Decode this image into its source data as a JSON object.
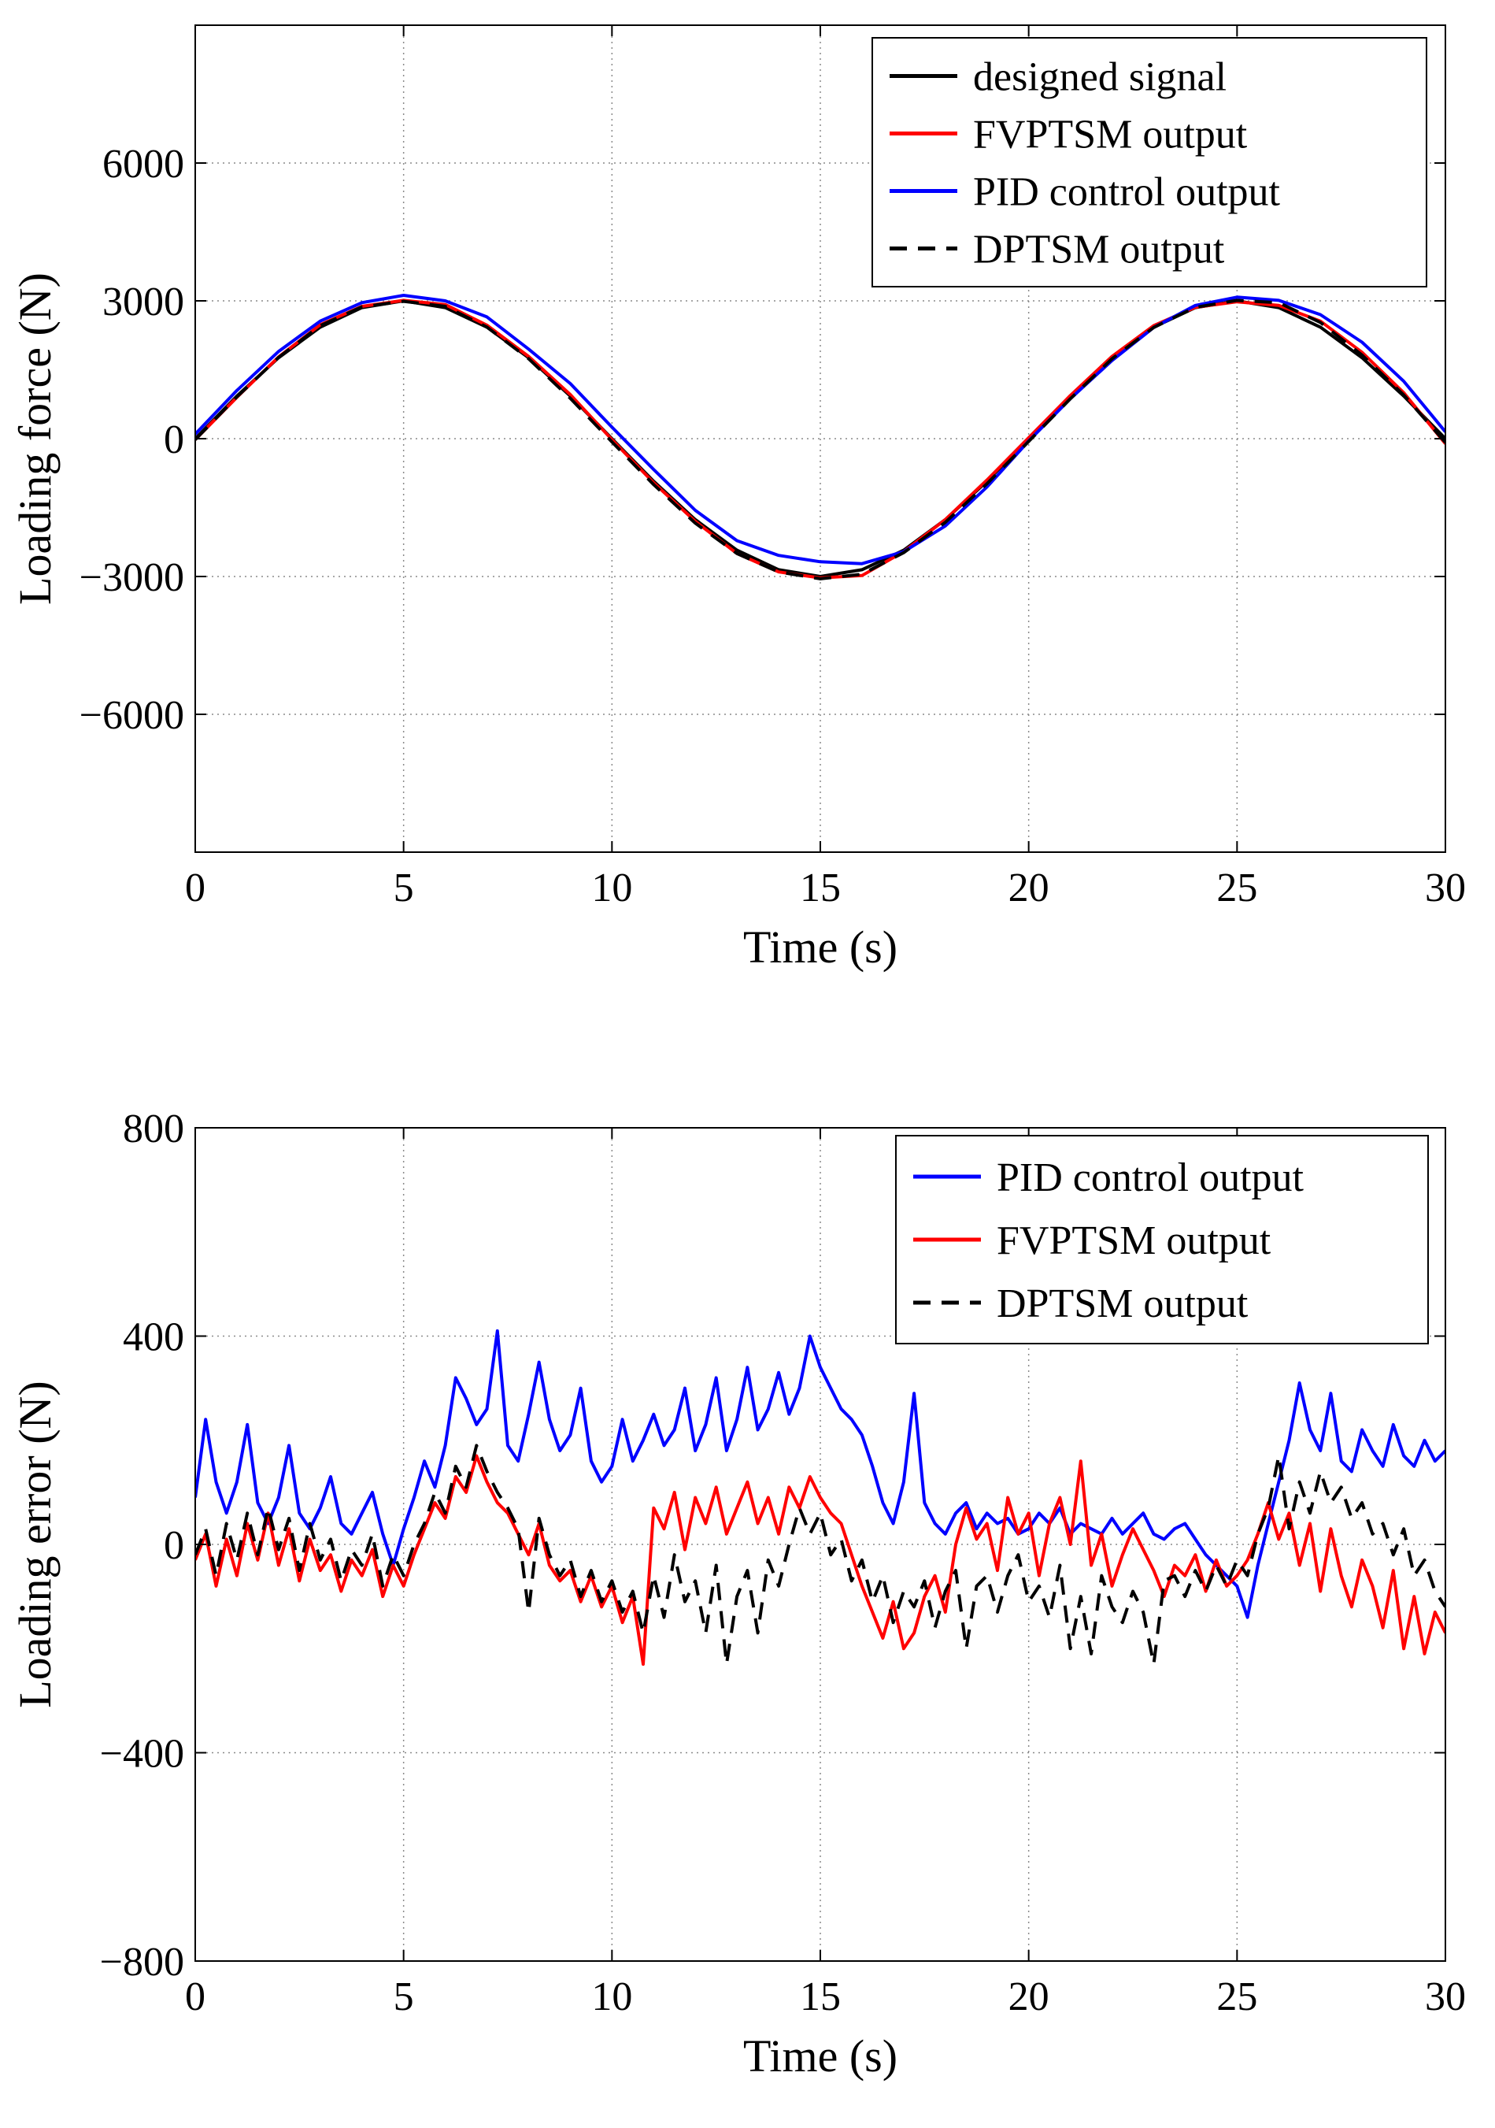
{
  "chart_data": [
    {
      "type": "line",
      "title": "",
      "xlabel": "Time (s)",
      "ylabel": "Loading force (N)",
      "xlim": [
        0,
        30
      ],
      "ylim": [
        -9000,
        9000
      ],
      "xticks": [
        0,
        5,
        10,
        15,
        20,
        25,
        30
      ],
      "xtick_labels": [
        "0",
        "5",
        "10",
        "15",
        "20",
        "25",
        "30"
      ],
      "yticks": [
        -6000,
        -3000,
        0,
        3000,
        6000
      ],
      "ytick_labels": [
        "−6000",
        "−3000",
        "0",
        "3000",
        "6000"
      ],
      "grid": true,
      "legend_position": "top-right",
      "series": [
        {
          "name": "designed signal",
          "color": "#000000",
          "style": "solid",
          "x": [
            0,
            1,
            2,
            3,
            4,
            5,
            6,
            7,
            8,
            9,
            10,
            11,
            12,
            13,
            14,
            15,
            16,
            17,
            18,
            19,
            20,
            21,
            22,
            23,
            24,
            25,
            26,
            27,
            28,
            29,
            30
          ],
          "values": [
            0,
            927,
            1763,
            2427,
            2853,
            3000,
            2853,
            2427,
            1763,
            927,
            0,
            -927,
            -1763,
            -2427,
            -2853,
            -3000,
            -2853,
            -2427,
            -1763,
            -927,
            0,
            927,
            1763,
            2427,
            2853,
            3000,
            2853,
            2427,
            1763,
            927,
            0
          ]
        },
        {
          "name": "FVPTSM output",
          "color": "#ff0000",
          "style": "solid",
          "x": [
            0,
            1,
            2,
            3,
            4,
            5,
            6,
            7,
            8,
            9,
            10,
            11,
            12,
            13,
            14,
            15,
            16,
            17,
            18,
            19,
            20,
            21,
            22,
            23,
            24,
            25,
            26,
            27,
            28,
            29,
            30
          ],
          "values": [
            -20,
            900,
            1780,
            2480,
            2880,
            3010,
            2920,
            2470,
            1790,
            960,
            -20,
            -960,
            -1800,
            -2500,
            -2900,
            -3030,
            -2980,
            -2460,
            -1760,
            -900,
            20,
            940,
            1790,
            2460,
            2860,
            2980,
            2900,
            2560,
            1880,
            1000,
            -110
          ]
        },
        {
          "name": "PID control output",
          "color": "#0000ff",
          "style": "solid",
          "x": [
            0,
            1,
            2,
            3,
            4,
            5,
            6,
            7,
            8,
            9,
            10,
            11,
            12,
            13,
            14,
            15,
            16,
            17,
            18,
            19,
            20,
            21,
            22,
            23,
            24,
            25,
            26,
            27,
            28,
            29,
            30
          ],
          "values": [
            100,
            1050,
            1900,
            2560,
            2960,
            3120,
            3000,
            2650,
            1950,
            1200,
            250,
            -670,
            -1560,
            -2220,
            -2540,
            -2680,
            -2720,
            -2460,
            -1900,
            -1050,
            -50,
            870,
            1700,
            2420,
            2900,
            3080,
            3010,
            2700,
            2100,
            1250,
            150
          ]
        },
        {
          "name": "DPTSM output",
          "color": "#000000",
          "style": "dashed",
          "x": [
            0,
            1,
            2,
            3,
            4,
            5,
            6,
            7,
            8,
            9,
            10,
            11,
            12,
            13,
            14,
            15,
            16,
            17,
            18,
            19,
            20,
            21,
            22,
            23,
            24,
            25,
            26,
            27,
            28,
            29,
            30
          ],
          "values": [
            -20,
            910,
            1770,
            2460,
            2870,
            2990,
            2880,
            2430,
            1740,
            880,
            -70,
            -1000,
            -1840,
            -2500,
            -2900,
            -3050,
            -2950,
            -2480,
            -1820,
            -980,
            -60,
            870,
            1740,
            2420,
            2860,
            3010,
            2960,
            2530,
            1820,
            950,
            -80
          ]
        }
      ]
    },
    {
      "type": "line",
      "title": "",
      "xlabel": "Time (s)",
      "ylabel": "Loading error (N)",
      "xlim": [
        0,
        30
      ],
      "ylim": [
        -800,
        800
      ],
      "xticks": [
        0,
        5,
        10,
        15,
        20,
        25,
        30
      ],
      "xtick_labels": [
        "0",
        "5",
        "10",
        "15",
        "20",
        "25",
        "30"
      ],
      "yticks": [
        -800,
        -400,
        0,
        400,
        800
      ],
      "ytick_labels": [
        "−800",
        "−400",
        "0",
        "400",
        "800"
      ],
      "grid": true,
      "legend_position": "top-right",
      "series": [
        {
          "name": "PID control output",
          "color": "#0000ff",
          "style": "solid",
          "x": [
            0,
            0.25,
            0.5,
            0.75,
            1,
            1.25,
            1.5,
            1.75,
            2,
            2.25,
            2.5,
            2.75,
            3,
            3.25,
            3.5,
            3.75,
            4,
            4.25,
            4.5,
            4.75,
            5,
            5.25,
            5.5,
            5.75,
            6,
            6.25,
            6.5,
            6.75,
            7,
            7.25,
            7.5,
            7.75,
            8,
            8.25,
            8.5,
            8.75,
            9,
            9.25,
            9.5,
            9.75,
            10,
            10.25,
            10.5,
            10.75,
            11,
            11.25,
            11.5,
            11.75,
            12,
            12.25,
            12.5,
            12.75,
            13,
            13.25,
            13.5,
            13.75,
            14,
            14.25,
            14.5,
            14.75,
            15,
            15.25,
            15.5,
            15.75,
            16,
            16.25,
            16.5,
            16.75,
            17,
            17.25,
            17.5,
            17.75,
            18,
            18.25,
            18.5,
            18.75,
            19,
            19.25,
            19.5,
            19.75,
            20,
            20.25,
            20.5,
            20.75,
            21,
            21.25,
            21.5,
            21.75,
            22,
            22.25,
            22.5,
            22.75,
            23,
            23.25,
            23.5,
            23.75,
            24,
            24.25,
            24.5,
            24.75,
            25,
            25.25,
            25.5,
            25.75,
            26,
            26.25,
            26.5,
            26.75,
            27,
            27.25,
            27.5,
            27.75,
            28,
            28.25,
            28.5,
            28.75,
            29,
            29.25,
            29.5,
            29.75,
            30
          ],
          "values": [
            90,
            240,
            120,
            60,
            120,
            230,
            80,
            40,
            90,
            190,
            60,
            30,
            70,
            130,
            40,
            20,
            60,
            100,
            20,
            -40,
            30,
            90,
            160,
            110,
            190,
            320,
            280,
            230,
            260,
            410,
            190,
            160,
            250,
            350,
            240,
            180,
            210,
            300,
            160,
            120,
            150,
            240,
            160,
            200,
            250,
            190,
            220,
            300,
            180,
            230,
            320,
            180,
            240,
            340,
            220,
            260,
            330,
            250,
            300,
            400,
            340,
            300,
            260,
            240,
            210,
            150,
            80,
            40,
            120,
            290,
            80,
            40,
            20,
            60,
            80,
            30,
            60,
            40,
            50,
            20,
            30,
            60,
            40,
            70,
            20,
            40,
            30,
            20,
            50,
            20,
            40,
            60,
            20,
            10,
            30,
            40,
            10,
            -20,
            -40,
            -60,
            -80,
            -140,
            -40,
            40,
            120,
            200,
            310,
            220,
            180,
            290,
            160,
            140,
            220,
            180,
            150,
            230,
            170,
            150,
            200,
            160,
            180
          ]
        },
        {
          "name": "FVPTSM output",
          "color": "#ff0000",
          "style": "solid",
          "x": [
            0,
            0.25,
            0.5,
            0.75,
            1,
            1.25,
            1.5,
            1.75,
            2,
            2.25,
            2.5,
            2.75,
            3,
            3.25,
            3.5,
            3.75,
            4,
            4.25,
            4.5,
            4.75,
            5,
            5.25,
            5.5,
            5.75,
            6,
            6.25,
            6.5,
            6.75,
            7,
            7.25,
            7.5,
            7.75,
            8,
            8.25,
            8.5,
            8.75,
            9,
            9.25,
            9.5,
            9.75,
            10,
            10.25,
            10.5,
            10.75,
            11,
            11.25,
            11.5,
            11.75,
            12,
            12.25,
            12.5,
            12.75,
            13,
            13.25,
            13.5,
            13.75,
            14,
            14.25,
            14.5,
            14.75,
            15,
            15.25,
            15.5,
            15.75,
            16,
            16.25,
            16.5,
            16.75,
            17,
            17.25,
            17.5,
            17.75,
            18,
            18.25,
            18.5,
            18.75,
            19,
            19.25,
            19.5,
            19.75,
            20,
            20.25,
            20.5,
            20.75,
            21,
            21.25,
            21.5,
            21.75,
            22,
            22.25,
            22.5,
            22.75,
            23,
            23.25,
            23.5,
            23.75,
            24,
            24.25,
            24.5,
            24.75,
            25,
            25.25,
            25.5,
            25.75,
            26,
            26.25,
            26.5,
            26.75,
            27,
            27.25,
            27.5,
            27.75,
            28,
            28.25,
            28.5,
            28.75,
            29,
            29.25,
            29.5,
            29.75,
            30
          ],
          "values": [
            -30,
            20,
            -80,
            10,
            -60,
            40,
            -30,
            60,
            -40,
            30,
            -70,
            10,
            -50,
            -20,
            -90,
            -30,
            -60,
            -10,
            -100,
            -40,
            -80,
            -20,
            30,
            80,
            50,
            130,
            100,
            170,
            120,
            80,
            60,
            20,
            -20,
            40,
            -40,
            -70,
            -50,
            -110,
            -60,
            -120,
            -80,
            -150,
            -100,
            -230,
            70,
            30,
            100,
            -10,
            90,
            40,
            110,
            20,
            70,
            120,
            40,
            90,
            20,
            110,
            70,
            130,
            90,
            60,
            40,
            -20,
            -80,
            -130,
            -180,
            -110,
            -200,
            -170,
            -100,
            -60,
            -130,
            0,
            70,
            10,
            40,
            -50,
            90,
            20,
            60,
            -60,
            40,
            90,
            0,
            160,
            -40,
            20,
            -80,
            -20,
            30,
            -10,
            -50,
            -100,
            -40,
            -60,
            -20,
            -90,
            -30,
            -80,
            -60,
            -30,
            20,
            80,
            10,
            60,
            -40,
            40,
            -90,
            30,
            -60,
            -120,
            -30,
            -80,
            -160,
            -50,
            -200,
            -100,
            -210,
            -130,
            -170
          ]
        },
        {
          "name": "DPTSM output",
          "color": "#000000",
          "style": "dashed",
          "x": [
            0,
            0.25,
            0.5,
            0.75,
            1,
            1.25,
            1.5,
            1.75,
            2,
            2.25,
            2.5,
            2.75,
            3,
            3.25,
            3.5,
            3.75,
            4,
            4.25,
            4.5,
            4.75,
            5,
            5.25,
            5.5,
            5.75,
            6,
            6.25,
            6.5,
            6.75,
            7,
            7.25,
            7.5,
            7.75,
            8,
            8.25,
            8.5,
            8.75,
            9,
            9.25,
            9.5,
            9.75,
            10,
            10.25,
            10.5,
            10.75,
            11,
            11.25,
            11.5,
            11.75,
            12,
            12.25,
            12.5,
            12.75,
            13,
            13.25,
            13.5,
            13.75,
            14,
            14.25,
            14.5,
            14.75,
            15,
            15.25,
            15.5,
            15.75,
            16,
            16.25,
            16.5,
            16.75,
            17,
            17.25,
            17.5,
            17.75,
            18,
            18.25,
            18.5,
            18.75,
            19,
            19.25,
            19.5,
            19.75,
            20,
            20.25,
            20.5,
            20.75,
            21,
            21.25,
            21.5,
            21.75,
            22,
            22.25,
            22.5,
            22.75,
            23,
            23.25,
            23.5,
            23.75,
            24,
            24.25,
            24.5,
            24.75,
            25,
            25.25,
            25.5,
            25.75,
            26,
            26.25,
            26.5,
            26.75,
            27,
            27.25,
            27.5,
            27.75,
            28,
            28.25,
            28.5,
            28.75,
            29,
            29.25,
            29.5,
            29.75,
            30
          ],
          "values": [
            -20,
            30,
            -60,
            40,
            -30,
            60,
            -20,
            70,
            -10,
            50,
            -50,
            40,
            -30,
            10,
            -70,
            -10,
            -40,
            20,
            -80,
            -20,
            -60,
            0,
            40,
            100,
            60,
            150,
            110,
            190,
            140,
            100,
            70,
            30,
            -130,
            50,
            -20,
            -60,
            -30,
            -100,
            -50,
            -110,
            -70,
            -130,
            -90,
            -170,
            -60,
            -140,
            -20,
            -110,
            -70,
            -170,
            -40,
            -230,
            -100,
            -50,
            -170,
            -30,
            -80,
            0,
            70,
            20,
            60,
            -20,
            10,
            -70,
            -30,
            -110,
            -60,
            -150,
            -90,
            -120,
            -70,
            -160,
            -90,
            -50,
            -200,
            -80,
            -60,
            -130,
            -60,
            -20,
            -110,
            -80,
            -140,
            -40,
            -200,
            -100,
            -210,
            -60,
            -120,
            -150,
            -90,
            -130,
            -230,
            -70,
            -60,
            -100,
            -50,
            -90,
            -40,
            -80,
            -30,
            -60,
            20,
            70,
            170,
            30,
            120,
            60,
            140,
            80,
            110,
            50,
            80,
            20,
            40,
            -20,
            30,
            -60,
            -30,
            -90,
            -120
          ]
        }
      ]
    }
  ]
}
